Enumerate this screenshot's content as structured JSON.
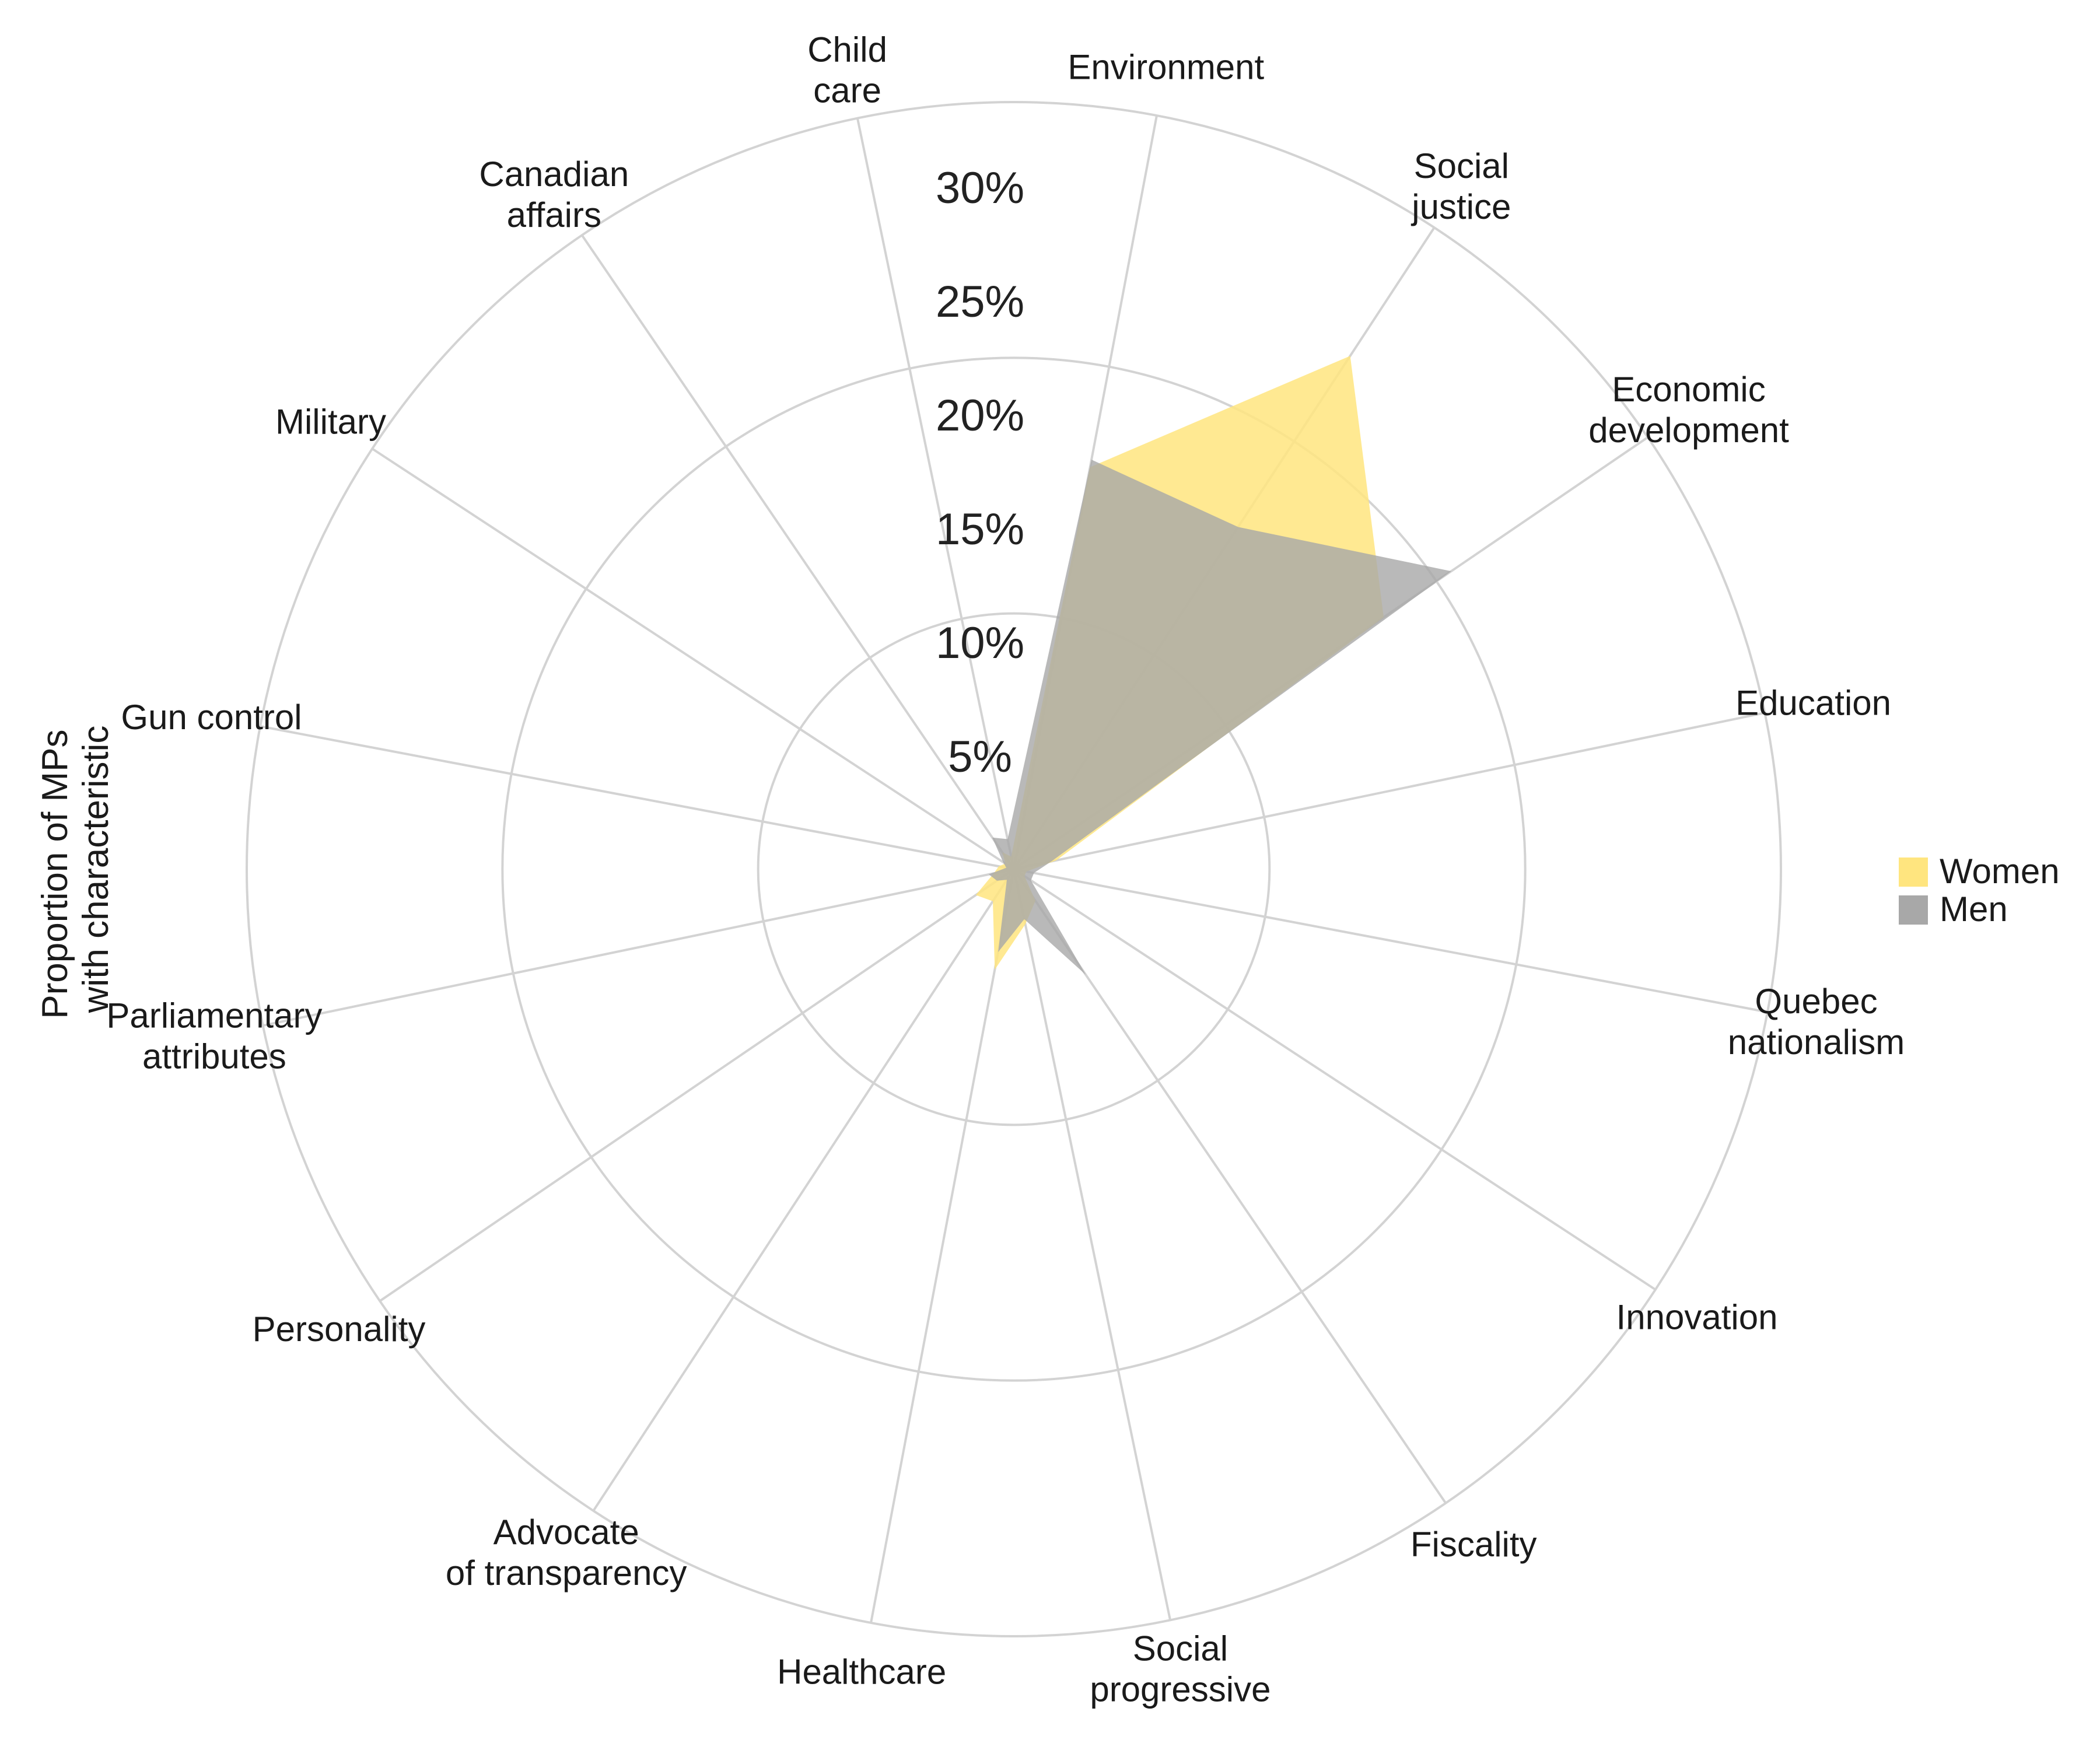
{
  "chart_data": {
    "type": "radar",
    "ylabel": [
      "Proportion of MPs",
      "with characteristic"
    ],
    "r_ticks": [
      5,
      10,
      15,
      20,
      25,
      30
    ],
    "r_tick_labels": [
      "5%",
      "10%",
      "15%",
      "20%",
      "25%",
      "30%"
    ],
    "r_max": 30,
    "categories": [
      [
        "Child",
        "care"
      ],
      [
        "Environment"
      ],
      [
        "Social",
        "justice"
      ],
      [
        "Economic",
        "development"
      ],
      [
        "Education"
      ],
      [
        "Quebec",
        "nationalism"
      ],
      [
        "Innovation"
      ],
      [
        "Fiscality"
      ],
      [
        "Social",
        "progressive"
      ],
      [
        "Healthcare"
      ],
      [
        "Advocate",
        "of transparency"
      ],
      [
        "Personality"
      ],
      [
        "Parliamentary",
        "attributes"
      ],
      [
        "Gun control"
      ],
      [
        "Military"
      ],
      [
        "Canadian",
        "affairs"
      ]
    ],
    "series": [
      {
        "name": "Women",
        "color": "#ffe57f",
        "values": [
          0.5,
          16.0,
          24.0,
          17.5,
          1.7,
          0.5,
          0.5,
          1.5,
          2.2,
          4.0,
          1.5,
          1.8,
          0.8,
          0.6,
          0.4,
          0.8
        ]
      },
      {
        "name": "Men",
        "color": "#a8a8a8",
        "values": [
          1.2,
          16.3,
          16.0,
          20.7,
          1.5,
          0.8,
          0.8,
          5.0,
          2.0,
          3.3,
          0.5,
          0.8,
          1.0,
          0.3,
          0.5,
          1.5
        ]
      }
    ],
    "legend_position": "right"
  }
}
